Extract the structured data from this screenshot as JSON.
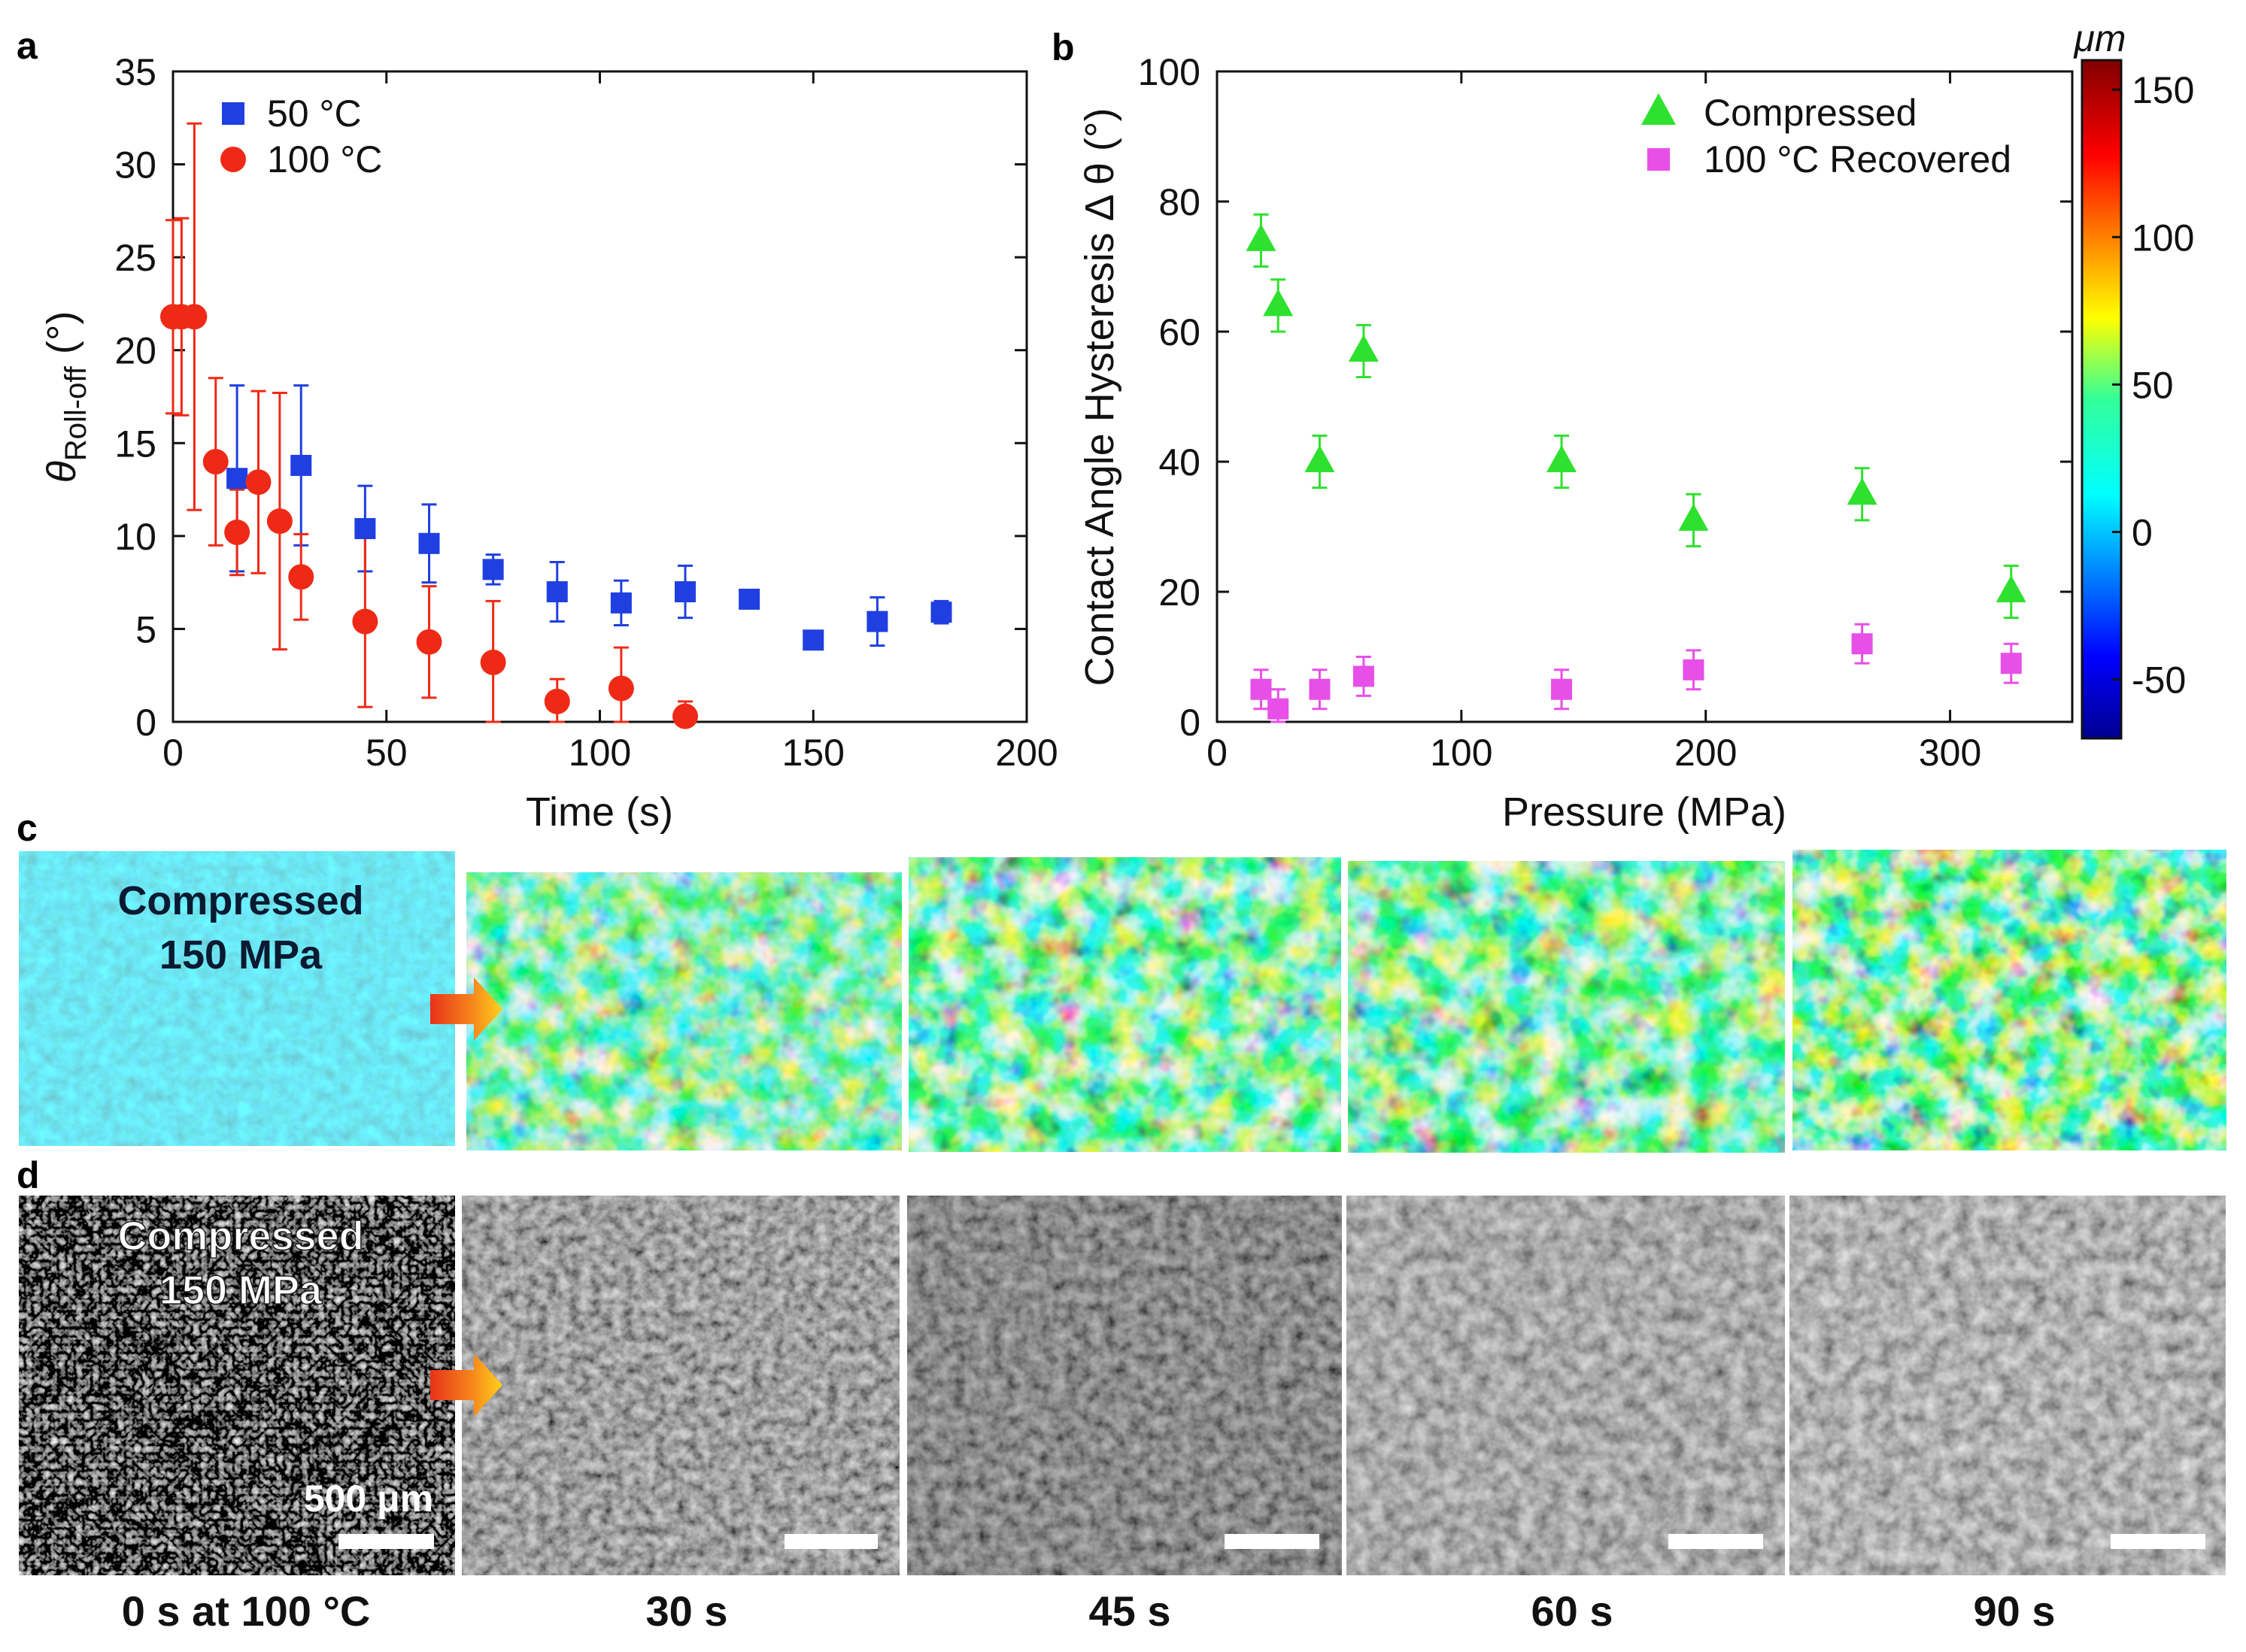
{
  "panels": {
    "a": "a",
    "b": "b",
    "c": "c",
    "d": "d"
  },
  "chart_data": [
    {
      "id": "a",
      "type": "scatter",
      "xlabel": "Time (s)",
      "ylabel": "θ",
      "ylabel_subscript": "Roll-off",
      "ylabel_unit": "(°)",
      "xlim": [
        0,
        200
      ],
      "ylim": [
        0,
        35
      ],
      "xticks": [
        0,
        50,
        100,
        150,
        200
      ],
      "yticks": [
        0,
        5,
        10,
        15,
        20,
        25,
        30,
        35
      ],
      "series": [
        {
          "name": "50 °C",
          "marker": "square",
          "color": "#1f3fe0",
          "x": [
            15,
            30,
            45,
            60,
            75,
            90,
            105,
            120,
            135,
            150,
            165,
            180
          ],
          "y": [
            13.1,
            13.8,
            10.4,
            9.6,
            8.2,
            7.0,
            6.4,
            7.0,
            6.6,
            4.4,
            5.4,
            5.9
          ],
          "err": [
            5.0,
            4.3,
            2.3,
            2.1,
            0.8,
            1.6,
            1.2,
            1.4,
            0.3,
            0.3,
            1.3,
            0.6
          ]
        },
        {
          "name": "100 °C",
          "marker": "circle",
          "color": "#ee2a16",
          "x": [
            0,
            2,
            5,
            10,
            15,
            20,
            25,
            30,
            45,
            60,
            75,
            90,
            105,
            120
          ],
          "y": [
            21.8,
            21.8,
            21.8,
            14.0,
            10.2,
            12.9,
            10.8,
            7.8,
            5.4,
            4.3,
            3.2,
            1.1,
            1.8,
            0.3
          ],
          "err": [
            5.2,
            5.3,
            10.4,
            4.5,
            2.3,
            4.9,
            6.9,
            2.3,
            4.6,
            3.0,
            3.3,
            1.2,
            2.2,
            0.8
          ]
        }
      ]
    },
    {
      "id": "b",
      "type": "scatter",
      "xlabel": "Pressure (MPa)",
      "ylabel": "Contact Angle Hysteresis Δ θ (°)",
      "xlim": [
        0,
        350
      ],
      "ylim": [
        0,
        100
      ],
      "xticks": [
        0,
        100,
        200,
        300
      ],
      "yticks": [
        0,
        20,
        40,
        60,
        80,
        100
      ],
      "series": [
        {
          "name": "Compressed",
          "marker": "triangle",
          "color": "#2ee12e",
          "x": [
            18,
            25,
            42,
            60,
            141,
            195,
            264,
            325
          ],
          "y": [
            74,
            64,
            40,
            57,
            40,
            31,
            35,
            20
          ],
          "err": [
            4,
            4,
            4,
            4,
            4,
            4,
            4,
            4
          ]
        },
        {
          "name": "100 °C Recovered",
          "marker": "square",
          "color": "#e84fe8",
          "x": [
            18,
            25,
            42,
            60,
            141,
            195,
            264,
            325
          ],
          "y": [
            5,
            2,
            5,
            7,
            5,
            8,
            12,
            9
          ],
          "err": [
            3,
            3,
            3,
            3,
            3,
            3,
            3,
            3
          ]
        }
      ],
      "colorbar": {
        "unit": "μm",
        "ticks": [
          150,
          100,
          50,
          0,
          -50
        ],
        "range": [
          -70,
          160
        ]
      }
    }
  ],
  "strips": {
    "c_overlay_line1": "Compressed",
    "c_overlay_line2": "150 MPa",
    "d_overlay_line1": "Compressed",
    "d_overlay_line2": "150 MPa",
    "scale_bar_label": "500 μm",
    "captions": [
      "0 s at 100 °C",
      "30 s",
      "45 s",
      "60 s",
      "90 s"
    ]
  }
}
